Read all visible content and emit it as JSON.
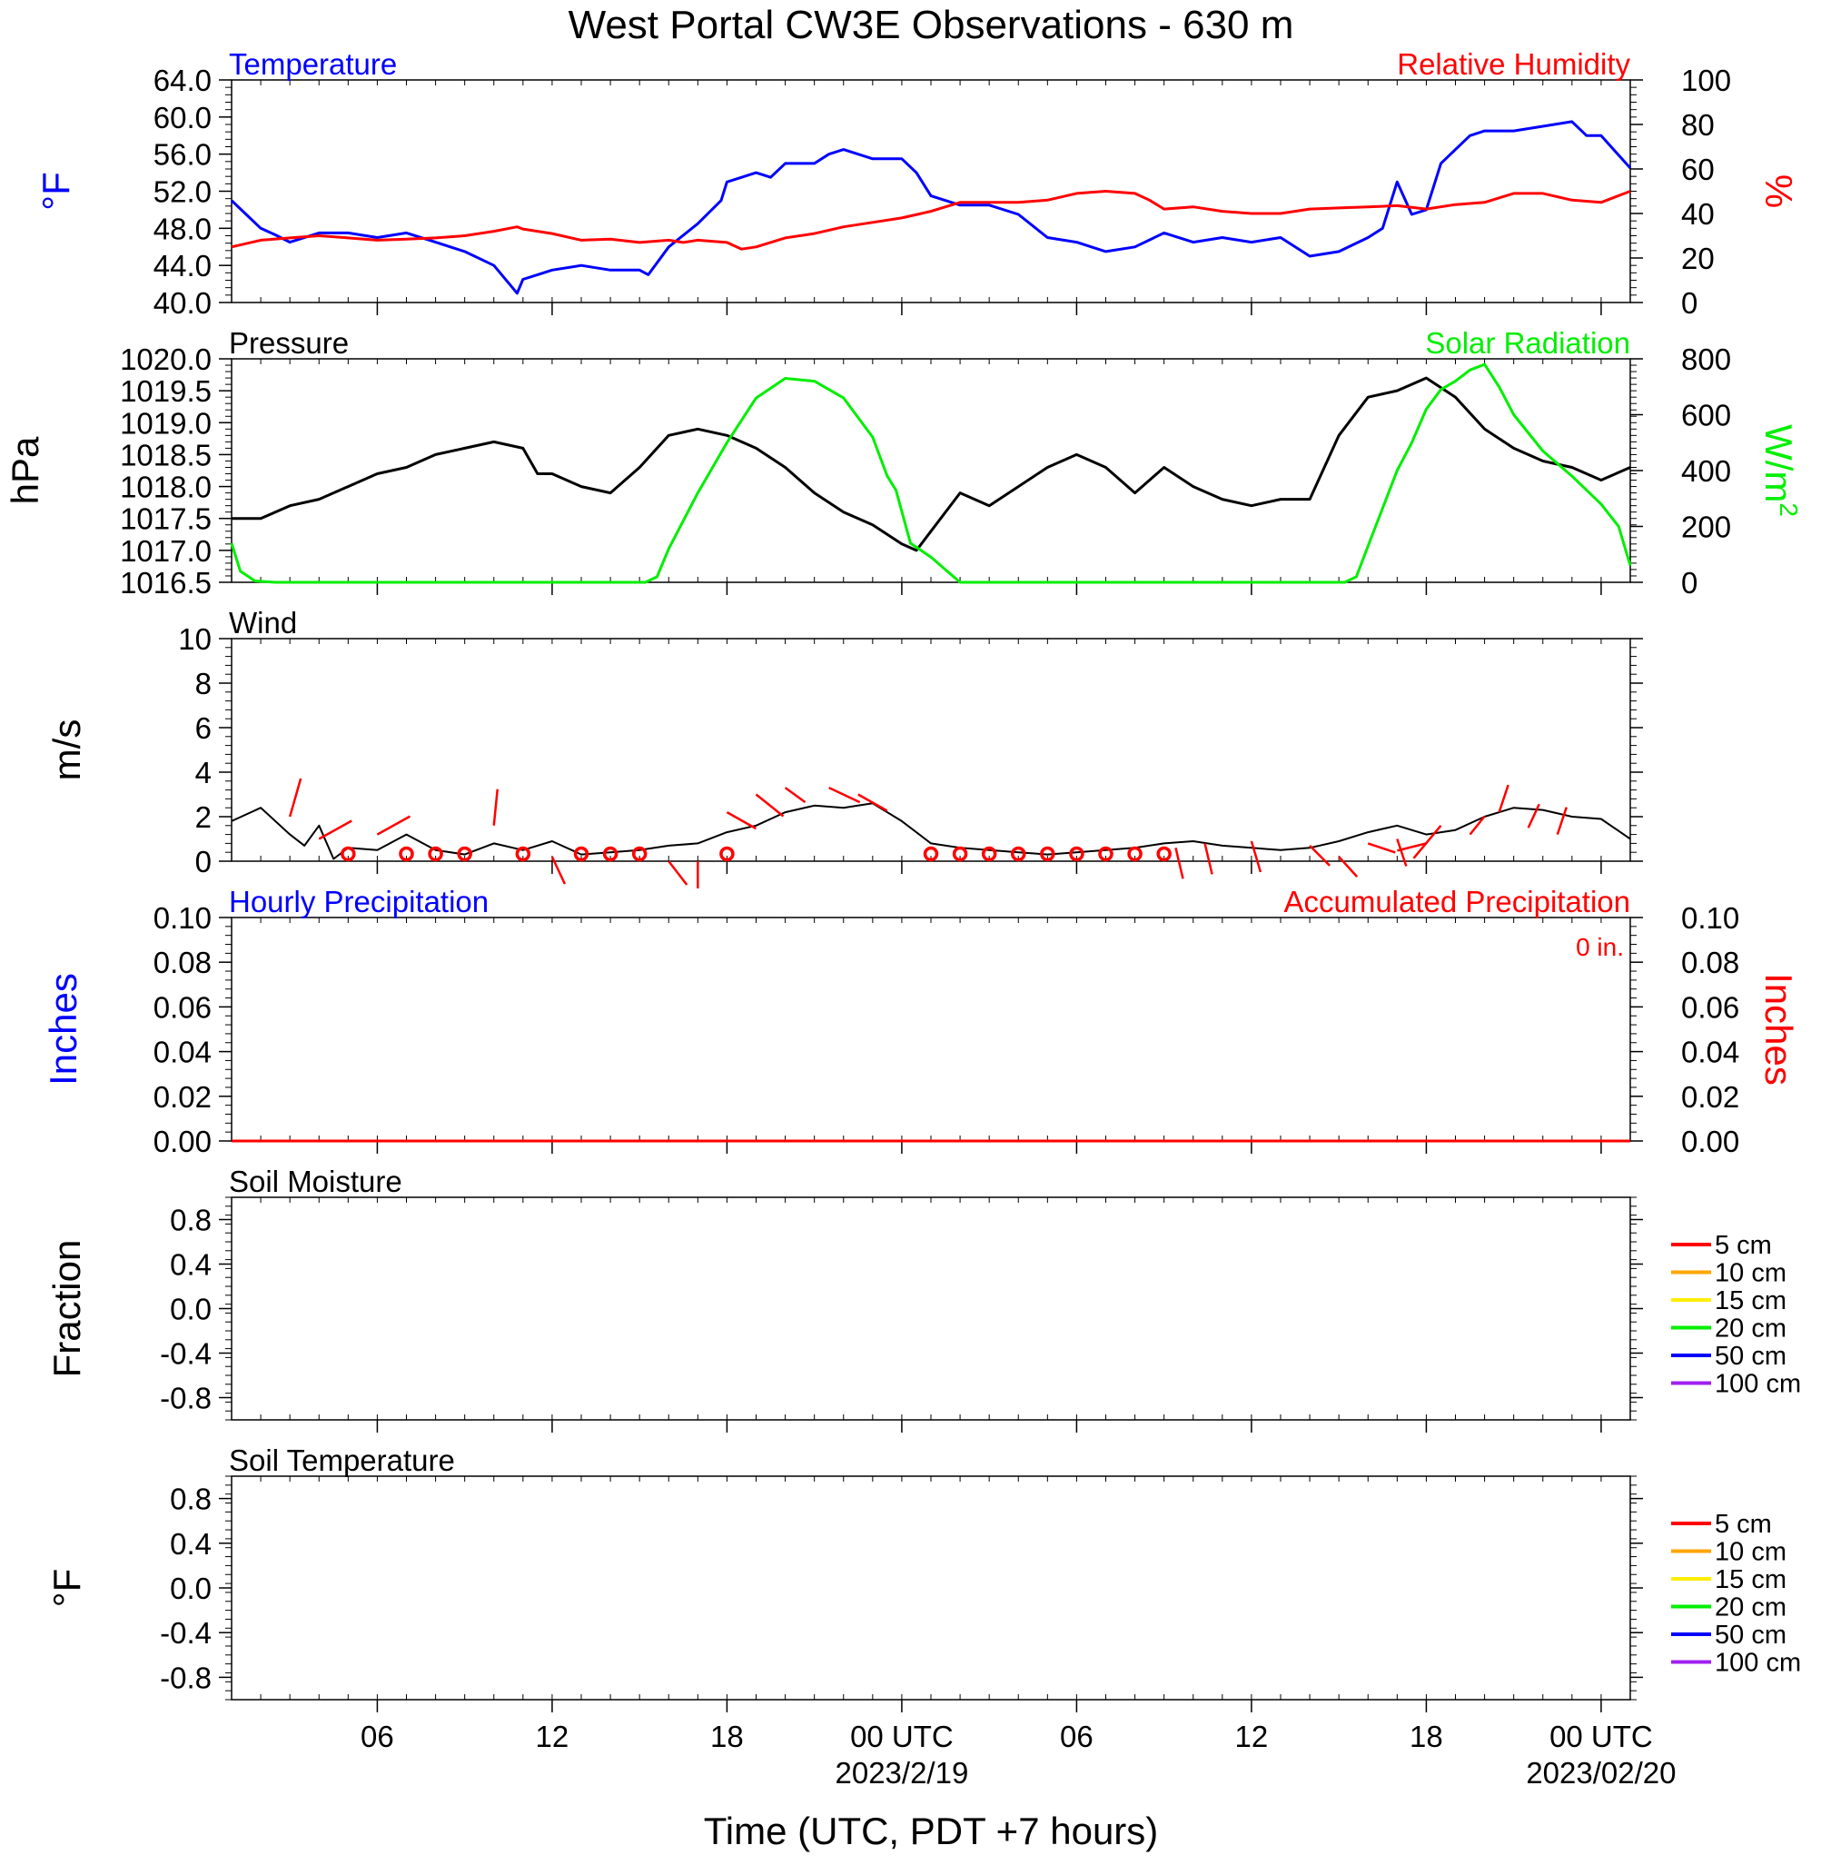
{
  "title": "West Portal CW3E Observations - 630 m",
  "xlabel": "Time (UTC, PDT +7 hours)",
  "x_ticks": [
    {
      "hour": 6,
      "label": "06",
      "date": ""
    },
    {
      "hour": 12,
      "label": "12",
      "date": ""
    },
    {
      "hour": 18,
      "label": "18",
      "date": ""
    },
    {
      "hour": 24,
      "label": "00 UTC",
      "date": "2023/2/19"
    },
    {
      "hour": 30,
      "label": "06",
      "date": ""
    },
    {
      "hour": 36,
      "label": "12",
      "date": ""
    },
    {
      "hour": 42,
      "label": "18",
      "date": ""
    },
    {
      "hour": 48,
      "label": "00 UTC",
      "date": "2023/02/20"
    }
  ],
  "colors": {
    "temperature": "#0000ff",
    "humidity": "#ff0000",
    "pressure": "#000000",
    "solar": "#00ee00",
    "wind": "#000000",
    "barb": "#ff0000"
  },
  "chart_data": [
    {
      "type": "line",
      "title_left": "Temperature",
      "title_right": "Relative Humidity",
      "ylabel_left": "°F",
      "ylabel_right": "%",
      "xlim": [
        1,
        49
      ],
      "ylim_left": [
        40,
        64
      ],
      "ylim_right": [
        0,
        100
      ],
      "yticks_left": [
        "40.0",
        "44.0",
        "48.0",
        "52.0",
        "56.0",
        "60.0",
        "64.0"
      ],
      "yticks_right": [
        "0",
        "20",
        "40",
        "60",
        "80",
        "100"
      ],
      "series": [
        {
          "name": "Temperature",
          "axis": "left",
          "x": [
            1,
            1.5,
            2,
            2.5,
            3,
            4,
            5,
            6,
            7,
            8,
            9,
            10,
            10.8,
            11,
            11.5,
            12,
            13,
            14,
            15,
            15.3,
            16,
            17,
            17.8,
            18,
            18.5,
            19,
            19.5,
            20,
            21,
            21.5,
            22,
            23,
            24,
            24.5,
            25,
            26,
            27,
            28,
            29,
            30,
            31,
            32,
            33,
            34,
            35,
            36,
            37,
            38,
            39,
            40,
            40.5,
            41,
            41.5,
            42,
            42.5,
            43,
            43.5,
            44,
            45,
            46,
            47,
            47.5,
            48,
            49
          ],
          "y": [
            51,
            49.5,
            48,
            47.3,
            46.5,
            47.5,
            47.5,
            47,
            47.5,
            46.5,
            45.5,
            44,
            41,
            42.5,
            43,
            43.5,
            44,
            43.5,
            43.5,
            43,
            46,
            48.5,
            51,
            53,
            53.5,
            54,
            53.5,
            55,
            55,
            56,
            56.5,
            55.5,
            55.5,
            54,
            51.5,
            50.5,
            50.5,
            49.5,
            47,
            46.5,
            45.5,
            46,
            47.5,
            46.5,
            47,
            46.5,
            47,
            45,
            45.5,
            47,
            48,
            53,
            49.5,
            50,
            55,
            56.5,
            58,
            58.5,
            58.5,
            59,
            59.5,
            58,
            58,
            54.5
          ]
        },
        {
          "name": "Relative Humidity",
          "axis": "right",
          "x": [
            1,
            2,
            3,
            4,
            5,
            6,
            7,
            8,
            9,
            10,
            10.8,
            11,
            12,
            13,
            14,
            15,
            16,
            16.5,
            17,
            18,
            18.5,
            19,
            20,
            21,
            22,
            23,
            24,
            25,
            26,
            27,
            28,
            29,
            30,
            31,
            32,
            32.5,
            33,
            34,
            35,
            36,
            37,
            38,
            39,
            40,
            41,
            42,
            43,
            44,
            45,
            46,
            47,
            48,
            49
          ],
          "y": [
            25,
            28,
            29,
            30,
            29,
            28,
            28.5,
            29,
            30,
            32,
            34,
            33,
            31,
            28,
            28.5,
            27,
            28,
            27,
            28,
            27,
            24,
            25,
            29,
            31,
            34,
            36,
            38,
            41,
            45,
            45,
            45,
            46,
            49,
            50,
            49,
            46,
            42,
            43,
            41,
            40,
            40,
            42,
            42.5,
            43,
            43.5,
            42,
            44,
            45,
            49,
            49,
            46,
            45,
            50
          ]
        }
      ]
    },
    {
      "type": "line",
      "title_left": "Pressure",
      "title_right": "Solar Radiation",
      "ylabel_left": "hPa",
      "ylabel_right": "W/m²",
      "ylabel_right_base": "W/m",
      "ylabel_right_sup": "2",
      "xlim": [
        1,
        49
      ],
      "ylim_left": [
        1016.5,
        1020.0
      ],
      "ylim_right": [
        0,
        800
      ],
      "yticks_left": [
        "1016.5",
        "1017.0",
        "1017.5",
        "1018.0",
        "1018.5",
        "1019.0",
        "1019.5",
        "1020.0"
      ],
      "yticks_right": [
        "0",
        "200",
        "400",
        "600",
        "800"
      ],
      "series": [
        {
          "name": "Pressure",
          "axis": "left",
          "x": [
            1,
            2,
            3,
            4,
            5,
            6,
            7,
            8,
            9,
            10,
            11,
            11.5,
            12,
            13,
            14,
            15,
            16,
            17,
            18,
            19,
            20,
            21,
            22,
            23,
            24,
            24.5,
            25,
            26,
            27,
            28,
            29,
            30,
            31,
            32,
            33,
            34,
            35,
            36,
            37,
            38,
            39,
            40,
            41,
            42,
            43,
            44,
            45,
            46,
            47,
            48,
            49
          ],
          "y": [
            1017.5,
            1017.5,
            1017.7,
            1017.8,
            1018.0,
            1018.2,
            1018.3,
            1018.5,
            1018.6,
            1018.7,
            1018.6,
            1018.2,
            1018.2,
            1018.0,
            1017.9,
            1018.3,
            1018.8,
            1018.9,
            1018.8,
            1018.6,
            1018.3,
            1017.9,
            1017.6,
            1017.4,
            1017.1,
            1017.0,
            1017.3,
            1017.9,
            1017.7,
            1018.0,
            1018.3,
            1018.5,
            1018.3,
            1017.9,
            1018.3,
            1018.0,
            1017.8,
            1017.7,
            1017.8,
            1017.8,
            1018.8,
            1019.4,
            1019.5,
            1019.7,
            1019.4,
            1018.9,
            1018.6,
            1018.4,
            1018.3,
            1018.1,
            1018.3
          ]
        },
        {
          "name": "Solar Radiation",
          "axis": "right",
          "x": [
            1,
            1.3,
            1.8,
            2.5,
            14,
            15.2,
            15.6,
            16,
            17,
            18,
            19,
            20,
            21,
            22,
            22.5,
            23,
            23.5,
            23.8,
            24.3,
            25,
            26,
            27,
            28,
            38,
            39.2,
            39.6,
            40,
            41,
            41.5,
            42,
            42.5,
            43,
            43.5,
            44,
            44.5,
            45,
            46,
            47,
            48,
            48.6,
            49
          ],
          "y": [
            140,
            40,
            5,
            0,
            0,
            0,
            20,
            120,
            320,
            500,
            660,
            730,
            720,
            660,
            590,
            520,
            380,
            330,
            140,
            90,
            0,
            0,
            0,
            0,
            0,
            20,
            130,
            400,
            500,
            620,
            690,
            720,
            760,
            780,
            700,
            600,
            470,
            380,
            280,
            200,
            60
          ]
        }
      ]
    },
    {
      "type": "line",
      "title_left": "Wind",
      "ylabel_left": "m/s",
      "xlim": [
        1,
        49
      ],
      "ylim_left": [
        0,
        10
      ],
      "yticks_left": [
        "0",
        "2",
        "4",
        "6",
        "8",
        "10"
      ],
      "series": [
        {
          "name": "Wind",
          "axis": "left",
          "x": [
            1,
            2,
            3,
            3.5,
            4,
            4.5,
            5,
            6,
            7,
            8,
            9,
            10,
            11,
            12,
            13,
            14,
            15,
            16,
            17,
            18,
            19,
            20,
            21,
            22,
            23,
            24,
            25,
            26,
            27,
            28,
            29,
            30,
            31,
            32,
            33,
            34,
            35,
            36,
            37,
            38,
            39,
            40,
            41,
            42,
            43,
            44,
            45,
            46,
            47,
            48,
            49
          ],
          "y": [
            1.8,
            2.4,
            1.2,
            0.7,
            1.6,
            0.1,
            0.6,
            0.5,
            1.2,
            0.5,
            0.3,
            0.8,
            0.5,
            0.9,
            0.3,
            0.4,
            0.5,
            0.7,
            0.8,
            1.3,
            1.6,
            2.2,
            2.5,
            2.4,
            2.6,
            1.8,
            0.8,
            0.6,
            0.5,
            0.4,
            0.3,
            0.4,
            0.5,
            0.6,
            0.8,
            0.9,
            0.7,
            0.6,
            0.5,
            0.6,
            0.9,
            1.3,
            1.6,
            1.2,
            1.4,
            2.0,
            2.4,
            2.3,
            2.0,
            1.9,
            1.0
          ]
        }
      ],
      "barbs": [
        {
          "x": 3,
          "y": 2,
          "dx": 12,
          "dy": -42
        },
        {
          "x": 4,
          "y": 1,
          "dx": 36,
          "dy": -20
        },
        {
          "x": 6,
          "y": 1.2,
          "dx": 36,
          "dy": -20
        },
        {
          "x": 10,
          "y": 1.6,
          "dx": 4,
          "dy": -40
        },
        {
          "x": 12,
          "y": 0.2,
          "dx": 14,
          "dy": 30
        },
        {
          "x": 16,
          "y": 0,
          "dx": 20,
          "dy": 26
        },
        {
          "x": 17,
          "y": 0,
          "dx": 0,
          "dy": 30
        },
        {
          "x": 18,
          "y": 2.2,
          "dx": 32,
          "dy": 18
        },
        {
          "x": 19,
          "y": 3,
          "dx": 30,
          "dy": 24
        },
        {
          "x": 20,
          "y": 3.3,
          "dx": 22,
          "dy": 16
        },
        {
          "x": 21.5,
          "y": 3.3,
          "dx": 34,
          "dy": 16
        },
        {
          "x": 22.5,
          "y": 3.0,
          "dx": 32,
          "dy": 18
        },
        {
          "x": 33.4,
          "y": 0.6,
          "dx": 8,
          "dy": 34
        },
        {
          "x": 34.4,
          "y": 0.8,
          "dx": 8,
          "dy": 34
        },
        {
          "x": 36,
          "y": 0.9,
          "dx": 10,
          "dy": 34
        },
        {
          "x": 38,
          "y": 0.7,
          "dx": 22,
          "dy": 22
        },
        {
          "x": 39,
          "y": 0.2,
          "dx": 20,
          "dy": 22
        },
        {
          "x": 40,
          "y": 0.8,
          "dx": 30,
          "dy": 10
        },
        {
          "x": 41,
          "y": 1.0,
          "dx": 10,
          "dy": 30
        },
        {
          "x": 42,
          "y": 0.8,
          "dx": -32,
          "dy": 8
        },
        {
          "x": 42.5,
          "y": 1.6,
          "dx": -30,
          "dy": 36
        },
        {
          "x": 43.5,
          "y": 1.2,
          "dx": 16,
          "dy": -20
        },
        {
          "x": 44.5,
          "y": 2.2,
          "dx": 10,
          "dy": -30
        },
        {
          "x": 45.5,
          "y": 1.5,
          "dx": 12,
          "dy": -26
        },
        {
          "x": 46.5,
          "y": 1.2,
          "dx": 10,
          "dy": -30
        }
      ],
      "calm": [
        5,
        7,
        8,
        9,
        11,
        13,
        14,
        15,
        18,
        25,
        26,
        27,
        28,
        29,
        30,
        31,
        32,
        33
      ]
    },
    {
      "type": "line",
      "title_left": "Hourly Precipitation",
      "title_right": "Accumulated Precipitation",
      "annotation": "0 in.",
      "ylabel_left": "Inches",
      "ylabel_right": "Inches",
      "xlim": [
        1,
        49
      ],
      "ylim_left": [
        0,
        0.1
      ],
      "ylim_right": [
        0,
        0.1
      ],
      "yticks_left": [
        "0.00",
        "0.02",
        "0.04",
        "0.06",
        "0.08",
        "0.10"
      ],
      "yticks_right": [
        "0.00",
        "0.02",
        "0.04",
        "0.06",
        "0.08",
        "0.10"
      ],
      "series": [
        {
          "name": "Hourly Precipitation",
          "axis": "left",
          "x": [
            1,
            49
          ],
          "y": [
            0,
            0
          ]
        },
        {
          "name": "Accumulated Precipitation",
          "axis": "right",
          "x": [
            1,
            49
          ],
          "y": [
            0,
            0
          ]
        }
      ]
    },
    {
      "type": "line",
      "title_left": "Soil Moisture",
      "ylabel_left": "Fraction",
      "xlim": [
        1,
        49
      ],
      "ylim_left": [
        -1,
        1
      ],
      "yticks_left": [
        "-0.8",
        "-0.4",
        "0.0",
        "0.4",
        "0.8"
      ],
      "legend": [
        {
          "label": "5 cm",
          "color": "#ff0000"
        },
        {
          "label": "10 cm",
          "color": "#ffa500"
        },
        {
          "label": "15 cm",
          "color": "#ffee00"
        },
        {
          "label": "20 cm",
          "color": "#00ee00"
        },
        {
          "label": "50 cm",
          "color": "#0000ff"
        },
        {
          "label": "100 cm",
          "color": "#a020f0"
        }
      ]
    },
    {
      "type": "line",
      "title_left": "Soil Temperature",
      "ylabel_left": "°F",
      "xlim": [
        1,
        49
      ],
      "ylim_left": [
        -1,
        1
      ],
      "yticks_left": [
        "-0.8",
        "-0.4",
        "0.0",
        "0.4",
        "0.8"
      ],
      "legend": [
        {
          "label": "5 cm",
          "color": "#ff0000"
        },
        {
          "label": "10 cm",
          "color": "#ffa500"
        },
        {
          "label": "15 cm",
          "color": "#ffee00"
        },
        {
          "label": "20 cm",
          "color": "#00ee00"
        },
        {
          "label": "50 cm",
          "color": "#0000ff"
        },
        {
          "label": "100 cm",
          "color": "#a020f0"
        }
      ]
    }
  ]
}
